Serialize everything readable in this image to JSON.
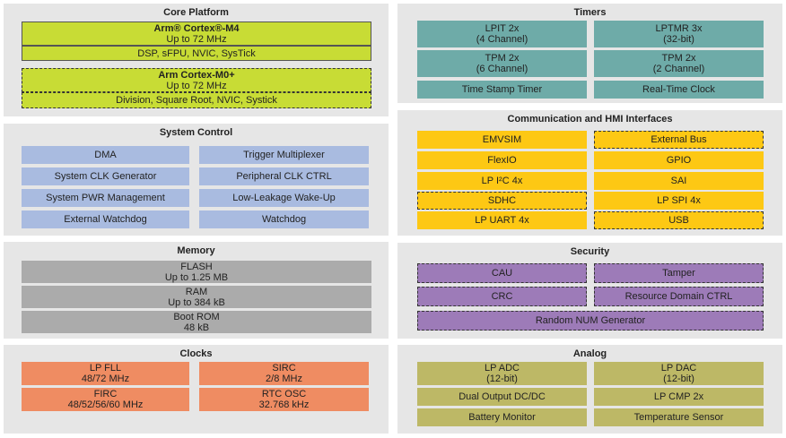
{
  "panels": [
    {
      "title": "Core Platform",
      "blocks": [
        [
          "Arm® Cortex®-M4",
          "Up to 72 MHz"
        ],
        [
          "DSP, sFPU, NVIC, SysTick"
        ],
        [
          "Arm Cortex-M0+",
          "Up to 72 MHz"
        ],
        [
          "Division, Square Root, NVIC, Systick"
        ]
      ]
    },
    {
      "title": "System Control",
      "blocks": [
        [
          "DMA"
        ],
        [
          "Trigger Multiplexer"
        ],
        [
          "System CLK Generator"
        ],
        [
          "Peripheral CLK CTRL"
        ],
        [
          "System PWR Management"
        ],
        [
          "Low-Leakage Wake-Up"
        ],
        [
          "External Watchdog"
        ],
        [
          "Watchdog"
        ]
      ]
    },
    {
      "title": "Memory",
      "blocks": [
        [
          "FLASH",
          "Up to 1.25 MB"
        ],
        [
          "RAM",
          "Up to 384 kB"
        ],
        [
          "Boot ROM",
          "48 kB"
        ]
      ]
    },
    {
      "title": "Clocks",
      "blocks": [
        [
          "LP FLL",
          "48/72 MHz"
        ],
        [
          "SIRC",
          "2/8 MHz"
        ],
        [
          "FIRC",
          "48/52/56/60 MHz"
        ],
        [
          "RTC OSC",
          "32.768 kHz"
        ]
      ]
    },
    {
      "title": "Timers",
      "blocks": [
        [
          "LPIT 2x",
          "(4 Channel)"
        ],
        [
          "LPTMR 3x",
          "(32-bit)"
        ],
        [
          "TPM 2x",
          "(6 Channel)"
        ],
        [
          "TPM 2x",
          "(2 Channel)"
        ],
        [
          "Time Stamp Timer"
        ],
        [
          "Real-Time Clock"
        ]
      ]
    },
    {
      "title": "Communication and HMI Interfaces",
      "blocks": [
        [
          "EMVSIM"
        ],
        [
          "External Bus"
        ],
        [
          "FlexIO"
        ],
        [
          "GPIO"
        ],
        [
          "LP I²C 4x"
        ],
        [
          "SAI"
        ],
        [
          "SDHC"
        ],
        [
          "LP SPI 4x"
        ],
        [
          "LP UART 4x"
        ],
        [
          "USB"
        ]
      ]
    },
    {
      "title": "Security",
      "blocks": [
        [
          "CAU"
        ],
        [
          "Tamper"
        ],
        [
          "CRC"
        ],
        [
          "Resource Domain CTRL"
        ],
        [
          "Random NUM Generator"
        ]
      ]
    },
    {
      "title": "Analog",
      "blocks": [
        [
          "LP ADC",
          "(12-bit)"
        ],
        [
          "LP DAC",
          "(12-bit)"
        ],
        [
          "Dual Output DC/DC"
        ],
        [
          "LP CMP 2x"
        ],
        [
          "Battery Monitor"
        ],
        [
          "Temperature Sensor"
        ]
      ]
    }
  ]
}
